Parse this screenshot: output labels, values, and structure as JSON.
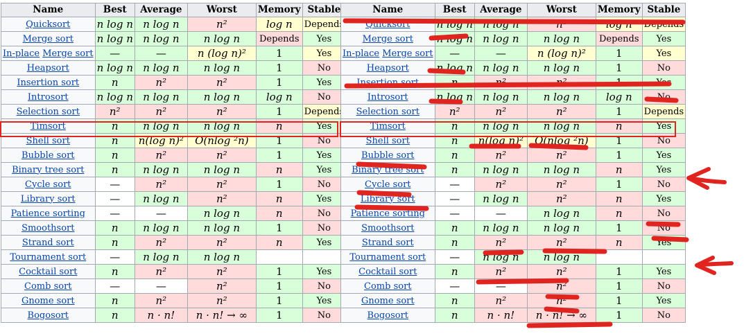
{
  "headers": [
    "Name",
    "Best",
    "Average",
    "Worst",
    "Memory",
    "Stable"
  ],
  "rows": [
    {
      "name": [
        "Quicksort"
      ],
      "cells": [
        [
          "n log n",
          "good"
        ],
        [
          "n log n",
          "good"
        ],
        [
          "n²",
          "bad"
        ],
        [
          "log n",
          "mid"
        ],
        [
          "Depends",
          "mid"
        ]
      ]
    },
    {
      "name": [
        "Merge sort"
      ],
      "cells": [
        [
          "n log n",
          "good"
        ],
        [
          "n log n",
          "good"
        ],
        [
          "n log n",
          "good"
        ],
        [
          "Depends",
          "bad"
        ],
        [
          "Yes",
          "good"
        ]
      ]
    },
    {
      "name": [
        "In-place",
        "Merge sort"
      ],
      "cells": [
        [
          "—",
          "good"
        ],
        [
          "—",
          "good"
        ],
        [
          "n (log n)²",
          "mid"
        ],
        [
          "1",
          "good"
        ],
        [
          "Yes",
          "mid"
        ]
      ]
    },
    {
      "name": [
        "Heapsort"
      ],
      "cells": [
        [
          "n log n",
          "good"
        ],
        [
          "n log n",
          "good"
        ],
        [
          "n log n",
          "good"
        ],
        [
          "1",
          "good"
        ],
        [
          "No",
          "bad"
        ]
      ]
    },
    {
      "name": [
        "Insertion sort"
      ],
      "cells": [
        [
          "n",
          "good"
        ],
        [
          "n²",
          "bad"
        ],
        [
          "n²",
          "bad"
        ],
        [
          "1",
          "good"
        ],
        [
          "Yes",
          "good"
        ]
      ]
    },
    {
      "name": [
        "Introsort"
      ],
      "cells": [
        [
          "n log n",
          "good"
        ],
        [
          "n log n",
          "good"
        ],
        [
          "n log n",
          "good"
        ],
        [
          "log n",
          "good"
        ],
        [
          "No",
          "bad"
        ]
      ]
    },
    {
      "name": [
        "Selection sort"
      ],
      "cells": [
        [
          "n²",
          "bad"
        ],
        [
          "n²",
          "bad"
        ],
        [
          "n²",
          "bad"
        ],
        [
          "1",
          "good"
        ],
        [
          "Depends",
          "mid"
        ]
      ]
    },
    {
      "name": [
        "Timsort"
      ],
      "cells": [
        [
          "n",
          "good"
        ],
        [
          "n log n",
          "good"
        ],
        [
          "n log n",
          "good"
        ],
        [
          "n",
          "bad"
        ],
        [
          "Yes",
          "good"
        ]
      ]
    },
    {
      "name": [
        "Shell sort"
      ],
      "cells": [
        [
          "n",
          "good"
        ],
        [
          "n(log n)²",
          "mid"
        ],
        [
          "O(nlog ²n)",
          "mid"
        ],
        [
          "1",
          "good"
        ],
        [
          "No",
          "bad"
        ]
      ]
    },
    {
      "name": [
        "Bubble sort"
      ],
      "cells": [
        [
          "n",
          "good"
        ],
        [
          "n²",
          "bad"
        ],
        [
          "n²",
          "bad"
        ],
        [
          "1",
          "good"
        ],
        [
          "Yes",
          "good"
        ]
      ]
    },
    {
      "name": [
        "Binary tree sort"
      ],
      "cells": [
        [
          "n",
          "good"
        ],
        [
          "n log n",
          "good"
        ],
        [
          "n log n",
          "good"
        ],
        [
          "n",
          "bad"
        ],
        [
          "Yes",
          "good"
        ]
      ]
    },
    {
      "name": [
        "Cycle sort"
      ],
      "cells": [
        [
          "—",
          "none"
        ],
        [
          "n²",
          "bad"
        ],
        [
          "n²",
          "bad"
        ],
        [
          "1",
          "good"
        ],
        [
          "No",
          "bad"
        ]
      ]
    },
    {
      "name": [
        "Library sort"
      ],
      "cells": [
        [
          "—",
          "none"
        ],
        [
          "n log n",
          "good"
        ],
        [
          "n²",
          "bad"
        ],
        [
          "n",
          "bad"
        ],
        [
          "Yes",
          "good"
        ]
      ]
    },
    {
      "name": [
        "Patience sorting"
      ],
      "cells": [
        [
          "—",
          "none"
        ],
        [
          "—",
          "none"
        ],
        [
          "n log n",
          "good"
        ],
        [
          "n",
          "bad"
        ],
        [
          "No",
          "bad"
        ]
      ]
    },
    {
      "name": [
        "Smoothsort"
      ],
      "cells": [
        [
          "n",
          "good"
        ],
        [
          "n log n",
          "good"
        ],
        [
          "n log n",
          "good"
        ],
        [
          "1",
          "good"
        ],
        [
          "No",
          "bad"
        ]
      ]
    },
    {
      "name": [
        "Strand sort"
      ],
      "cells": [
        [
          "n",
          "good"
        ],
        [
          "n²",
          "bad"
        ],
        [
          "n²",
          "bad"
        ],
        [
          "n",
          "bad"
        ],
        [
          "Yes",
          "good"
        ]
      ]
    },
    {
      "name": [
        "Tournament sort"
      ],
      "cells": [
        [
          "—",
          "none"
        ],
        [
          "n log n",
          "good"
        ],
        [
          "n log n",
          "good"
        ],
        [
          "",
          "none"
        ],
        [
          "",
          "none"
        ]
      ]
    },
    {
      "name": [
        "Cocktail sort"
      ],
      "cells": [
        [
          "n",
          "good"
        ],
        [
          "n²",
          "bad"
        ],
        [
          "n²",
          "bad"
        ],
        [
          "1",
          "good"
        ],
        [
          "Yes",
          "good"
        ]
      ]
    },
    {
      "name": [
        "Comb sort"
      ],
      "cells": [
        [
          "—",
          "none"
        ],
        [
          "—",
          "none"
        ],
        [
          "n²",
          "bad"
        ],
        [
          "1",
          "good"
        ],
        [
          "No",
          "bad"
        ]
      ]
    },
    {
      "name": [
        "Gnome sort"
      ],
      "cells": [
        [
          "n",
          "good"
        ],
        [
          "n²",
          "bad"
        ],
        [
          "n²",
          "bad"
        ],
        [
          "1",
          "good"
        ],
        [
          "Yes",
          "good"
        ]
      ]
    },
    {
      "name": [
        "Bogosort"
      ],
      "cells": [
        [
          "n",
          "good"
        ],
        [
          "n · n!",
          "bad"
        ],
        [
          "n · n! → ∞",
          "bad"
        ],
        [
          "1",
          "good"
        ],
        [
          "No",
          "bad"
        ]
      ]
    }
  ],
  "colors": {
    "good": "#d9ffda",
    "bad": "#ffdbdb",
    "mid": "#ffffd0",
    "none": "#ffffff",
    "mark": "#e0241f"
  }
}
